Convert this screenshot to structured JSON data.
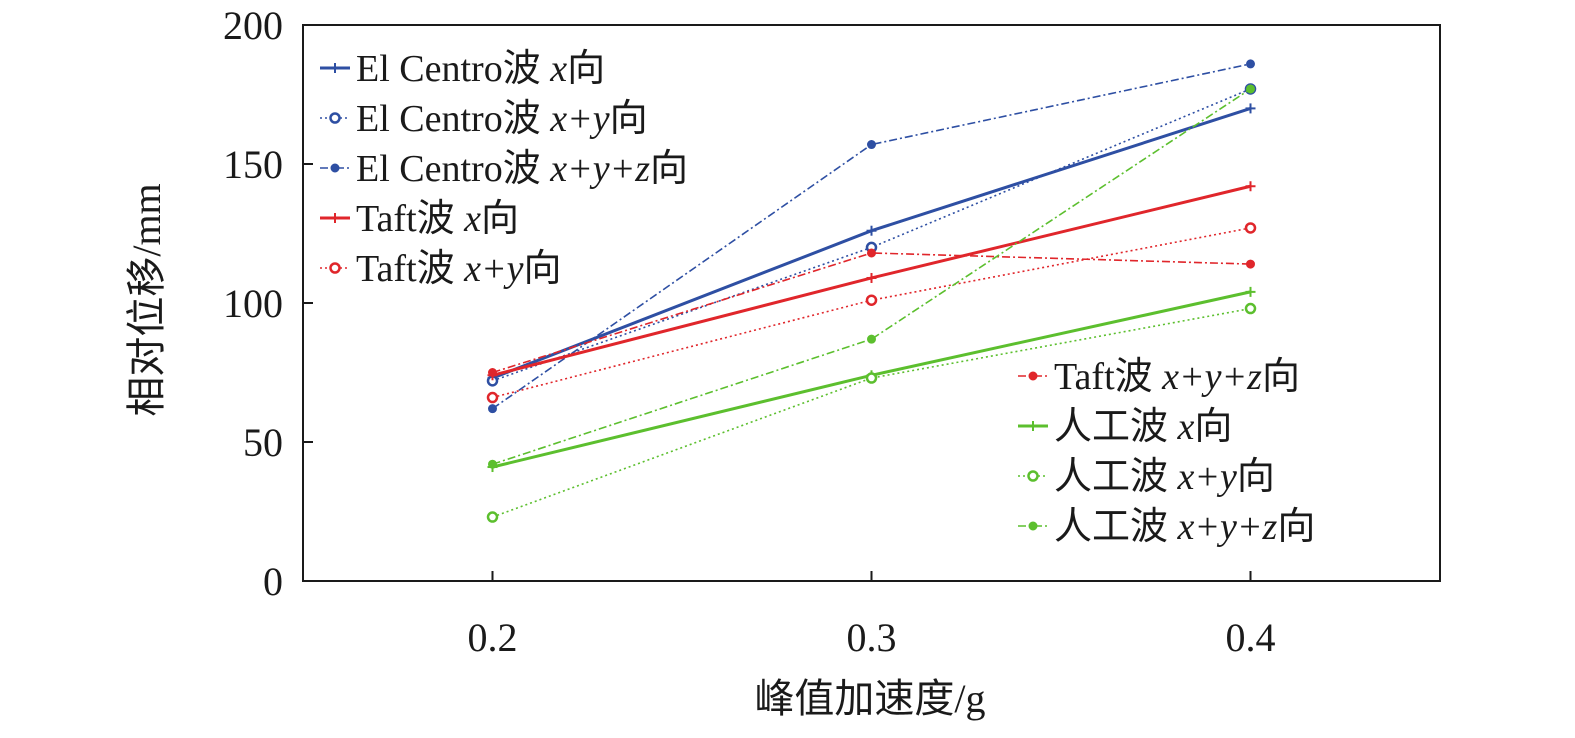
{
  "chart_data": {
    "type": "line",
    "xlabel": "峰值加速度/g",
    "ylabel": "相对位移/mm",
    "x": [
      0.2,
      0.3,
      0.4
    ],
    "x_tick_labels": [
      "0.2",
      "0.3",
      "0.4"
    ],
    "xlim": [
      0.15,
      0.45
    ],
    "ylim": [
      0,
      200
    ],
    "y_ticks": [
      0,
      50,
      100,
      150,
      200
    ],
    "y_tick_labels": [
      "0",
      "50",
      "100",
      "150",
      "200"
    ],
    "grid": false,
    "legend_placement": [
      "top-left",
      "bottom-right"
    ],
    "series": [
      {
        "name": "El Centro波 x向",
        "name_plain": "El Centro波 ",
        "name_italic": "x",
        "name_suffix": "向",
        "values": [
          73,
          126,
          170
        ],
        "color": "#2e4fa3",
        "line": "solid",
        "marker": "plus",
        "legend": 0
      },
      {
        "name": "El Centro波 x+y向",
        "name_plain": "El Centro波 ",
        "name_italic": "x+y",
        "name_suffix": "向",
        "values": [
          72,
          120,
          177
        ],
        "color": "#2e4fa3",
        "line": "dotted",
        "marker": "circle",
        "legend": 0
      },
      {
        "name": "El Centro波 x+y+z向",
        "name_plain": "El Centro波 ",
        "name_italic": "x+y+z",
        "name_suffix": "向",
        "values": [
          62,
          157,
          186
        ],
        "color": "#2e4fa3",
        "line": "dashdot",
        "marker": "dot",
        "legend": 0
      },
      {
        "name": "Taft波 x向",
        "name_plain": "Taft波 ",
        "name_italic": "x",
        "name_suffix": "向",
        "values": [
          74,
          109,
          142
        ],
        "color": "#e0262b",
        "line": "solid",
        "marker": "plus",
        "legend": 0
      },
      {
        "name": "Taft波 x+y向",
        "name_plain": "Taft波 ",
        "name_italic": "x+y",
        "name_suffix": "向",
        "values": [
          66,
          101,
          127
        ],
        "color": "#e0262b",
        "line": "dotted",
        "marker": "circle",
        "legend": 0
      },
      {
        "name": "Taft波 x+y+z向",
        "name_plain": "Taft波 ",
        "name_italic": "x+y+z",
        "name_suffix": "向",
        "values": [
          75,
          118,
          114
        ],
        "color": "#e0262b",
        "line": "dashdot",
        "marker": "dot",
        "legend": 1
      },
      {
        "name": "人工波 x向",
        "name_plain": "人工波 ",
        "name_italic": "x",
        "name_suffix": "向",
        "values": [
          41,
          74,
          104
        ],
        "color": "#5cbf2e",
        "line": "solid",
        "marker": "plus",
        "legend": 1
      },
      {
        "name": "人工波 x+y向",
        "name_plain": "人工波 ",
        "name_italic": "x+y",
        "name_suffix": "向",
        "values": [
          23,
          73,
          98
        ],
        "color": "#5cbf2e",
        "line": "dotted",
        "marker": "circle",
        "legend": 1
      },
      {
        "name": "人工波 x+y+z向",
        "name_plain": "人工波 ",
        "name_italic": "x+y+z",
        "name_suffix": "向",
        "values": [
          42,
          87,
          177
        ],
        "color": "#5cbf2e",
        "line": "dashdot",
        "marker": "dot",
        "legend": 1
      }
    ]
  }
}
